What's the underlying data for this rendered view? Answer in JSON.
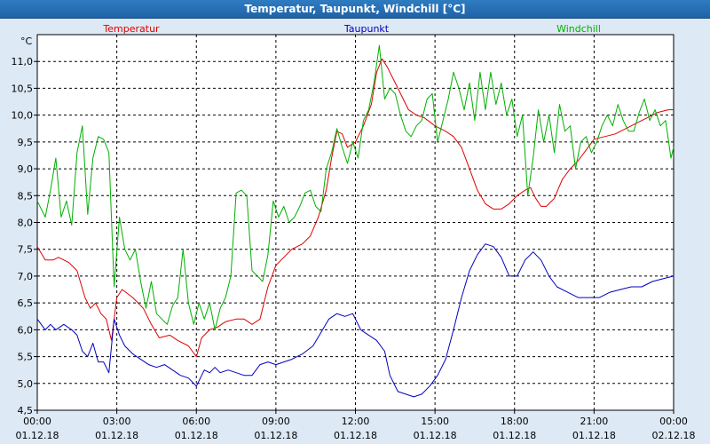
{
  "window": {
    "title": "Temperatur, Taupunkt, Windchill [°C]"
  },
  "chart_data": {
    "type": "line",
    "title": "Temperatur, Taupunkt, Windchill [°C]",
    "unit_label": "°C",
    "ylim": [
      4.5,
      11.5
    ],
    "y_ticks": [
      "4,5",
      "5,0",
      "5,5",
      "6,0",
      "6,5",
      "7,0",
      "7,5",
      "8,0",
      "8,5",
      "9,0",
      "9,5",
      "10,0",
      "10,5",
      "11,0"
    ],
    "x_ticks": [
      {
        "time": "00:00",
        "date": "01.12.18"
      },
      {
        "time": "03:00",
        "date": "01.12.18"
      },
      {
        "time": "06:00",
        "date": "01.12.18"
      },
      {
        "time": "09:00",
        "date": "01.12.18"
      },
      {
        "time": "12:00",
        "date": "01.12.18"
      },
      {
        "time": "15:00",
        "date": "01.12.18"
      },
      {
        "time": "18:00",
        "date": "01.12.18"
      },
      {
        "time": "21:00",
        "date": "01.12.18"
      },
      {
        "time": "00:00",
        "date": "02.12.18"
      }
    ],
    "x_range_hours": [
      0,
      24
    ],
    "grid": true,
    "legend_placement": "top",
    "series": [
      {
        "name": "Temperatur",
        "color": "#e00000",
        "points": [
          [
            0,
            7.55
          ],
          [
            0.3,
            7.3
          ],
          [
            0.6,
            7.3
          ],
          [
            0.8,
            7.35
          ],
          [
            1.2,
            7.25
          ],
          [
            1.5,
            7.1
          ],
          [
            1.8,
            6.6
          ],
          [
            2.0,
            6.4
          ],
          [
            2.2,
            6.5
          ],
          [
            2.4,
            6.3
          ],
          [
            2.6,
            6.2
          ],
          [
            2.8,
            5.8
          ],
          [
            3.0,
            6.6
          ],
          [
            3.2,
            6.75
          ],
          [
            3.6,
            6.6
          ],
          [
            4.0,
            6.4
          ],
          [
            4.3,
            6.1
          ],
          [
            4.6,
            5.85
          ],
          [
            5.0,
            5.9
          ],
          [
            5.3,
            5.8
          ],
          [
            5.7,
            5.7
          ],
          [
            6.0,
            5.5
          ],
          [
            6.2,
            5.85
          ],
          [
            6.5,
            6.0
          ],
          [
            6.8,
            6.05
          ],
          [
            7.1,
            6.15
          ],
          [
            7.5,
            6.2
          ],
          [
            7.8,
            6.2
          ],
          [
            8.1,
            6.1
          ],
          [
            8.4,
            6.2
          ],
          [
            8.7,
            6.8
          ],
          [
            9.0,
            7.2
          ],
          [
            9.3,
            7.35
          ],
          [
            9.6,
            7.5
          ],
          [
            10.0,
            7.6
          ],
          [
            10.3,
            7.75
          ],
          [
            10.6,
            8.1
          ],
          [
            10.9,
            8.6
          ],
          [
            11.1,
            9.2
          ],
          [
            11.3,
            9.7
          ],
          [
            11.5,
            9.65
          ],
          [
            11.7,
            9.4
          ],
          [
            12.0,
            9.5
          ],
          [
            12.3,
            9.8
          ],
          [
            12.6,
            10.2
          ],
          [
            12.8,
            10.8
          ],
          [
            13.0,
            11.05
          ],
          [
            13.2,
            10.9
          ],
          [
            13.5,
            10.6
          ],
          [
            13.8,
            10.3
          ],
          [
            14.0,
            10.1
          ],
          [
            14.3,
            10.0
          ],
          [
            14.6,
            9.95
          ],
          [
            15.0,
            9.8
          ],
          [
            15.4,
            9.7
          ],
          [
            15.7,
            9.6
          ],
          [
            16.0,
            9.4
          ],
          [
            16.3,
            9.0
          ],
          [
            16.6,
            8.6
          ],
          [
            16.9,
            8.35
          ],
          [
            17.2,
            8.25
          ],
          [
            17.5,
            8.25
          ],
          [
            17.8,
            8.35
          ],
          [
            18.1,
            8.5
          ],
          [
            18.4,
            8.6
          ],
          [
            18.6,
            8.65
          ],
          [
            18.8,
            8.45
          ],
          [
            19.0,
            8.3
          ],
          [
            19.2,
            8.3
          ],
          [
            19.5,
            8.45
          ],
          [
            19.8,
            8.8
          ],
          [
            20.1,
            9.0
          ],
          [
            20.4,
            9.15
          ],
          [
            20.7,
            9.35
          ],
          [
            21.0,
            9.55
          ],
          [
            21.4,
            9.6
          ],
          [
            21.8,
            9.65
          ],
          [
            22.2,
            9.75
          ],
          [
            22.6,
            9.85
          ],
          [
            23.0,
            9.95
          ],
          [
            23.4,
            10.05
          ],
          [
            23.8,
            10.1
          ],
          [
            24.0,
            10.1
          ]
        ]
      },
      {
        "name": "Taupunkt",
        "color": "#0000c0",
        "points": [
          [
            0,
            6.2
          ],
          [
            0.3,
            6.0
          ],
          [
            0.5,
            6.1
          ],
          [
            0.7,
            6.0
          ],
          [
            1.0,
            6.1
          ],
          [
            1.3,
            6.0
          ],
          [
            1.5,
            5.9
          ],
          [
            1.7,
            5.6
          ],
          [
            1.9,
            5.5
          ],
          [
            2.1,
            5.75
          ],
          [
            2.3,
            5.4
          ],
          [
            2.5,
            5.4
          ],
          [
            2.7,
            5.2
          ],
          [
            2.9,
            6.2
          ],
          [
            3.1,
            5.9
          ],
          [
            3.3,
            5.7
          ],
          [
            3.6,
            5.55
          ],
          [
            3.9,
            5.45
          ],
          [
            4.2,
            5.35
          ],
          [
            4.5,
            5.3
          ],
          [
            4.8,
            5.35
          ],
          [
            5.1,
            5.25
          ],
          [
            5.4,
            5.15
          ],
          [
            5.7,
            5.1
          ],
          [
            6.0,
            4.95
          ],
          [
            6.3,
            5.25
          ],
          [
            6.5,
            5.2
          ],
          [
            6.7,
            5.3
          ],
          [
            6.9,
            5.2
          ],
          [
            7.2,
            5.25
          ],
          [
            7.5,
            5.2
          ],
          [
            7.8,
            5.15
          ],
          [
            8.1,
            5.15
          ],
          [
            8.4,
            5.35
          ],
          [
            8.7,
            5.4
          ],
          [
            9.0,
            5.35
          ],
          [
            9.3,
            5.4
          ],
          [
            9.6,
            5.45
          ],
          [
            10.0,
            5.55
          ],
          [
            10.4,
            5.7
          ],
          [
            10.7,
            5.95
          ],
          [
            11.0,
            6.2
          ],
          [
            11.3,
            6.3
          ],
          [
            11.6,
            6.25
          ],
          [
            11.9,
            6.3
          ],
          [
            12.2,
            6.0
          ],
          [
            12.5,
            5.9
          ],
          [
            12.8,
            5.8
          ],
          [
            13.1,
            5.6
          ],
          [
            13.3,
            5.15
          ],
          [
            13.6,
            4.85
          ],
          [
            13.9,
            4.8
          ],
          [
            14.2,
            4.75
          ],
          [
            14.5,
            4.8
          ],
          [
            14.8,
            4.95
          ],
          [
            15.1,
            5.15
          ],
          [
            15.4,
            5.45
          ],
          [
            15.7,
            6.0
          ],
          [
            16.0,
            6.6
          ],
          [
            16.3,
            7.1
          ],
          [
            16.6,
            7.4
          ],
          [
            16.9,
            7.6
          ],
          [
            17.2,
            7.55
          ],
          [
            17.5,
            7.35
          ],
          [
            17.8,
            7.0
          ],
          [
            18.1,
            7.0
          ],
          [
            18.4,
            7.3
          ],
          [
            18.7,
            7.45
          ],
          [
            19.0,
            7.3
          ],
          [
            19.3,
            7.0
          ],
          [
            19.6,
            6.8
          ],
          [
            20.0,
            6.7
          ],
          [
            20.4,
            6.6
          ],
          [
            20.8,
            6.6
          ],
          [
            21.2,
            6.6
          ],
          [
            21.6,
            6.7
          ],
          [
            22.0,
            6.75
          ],
          [
            22.4,
            6.8
          ],
          [
            22.8,
            6.8
          ],
          [
            23.2,
            6.9
          ],
          [
            23.6,
            6.95
          ],
          [
            24.0,
            7.0
          ]
        ]
      },
      {
        "name": "Windchill",
        "color": "#00b000",
        "points": [
          [
            0,
            8.4
          ],
          [
            0.3,
            8.1
          ],
          [
            0.5,
            8.6
          ],
          [
            0.7,
            9.2
          ],
          [
            0.9,
            8.1
          ],
          [
            1.1,
            8.4
          ],
          [
            1.3,
            7.95
          ],
          [
            1.5,
            9.3
          ],
          [
            1.7,
            9.8
          ],
          [
            1.9,
            8.15
          ],
          [
            2.1,
            9.2
          ],
          [
            2.3,
            9.6
          ],
          [
            2.5,
            9.55
          ],
          [
            2.7,
            9.3
          ],
          [
            2.9,
            6.8
          ],
          [
            3.1,
            8.1
          ],
          [
            3.3,
            7.5
          ],
          [
            3.5,
            7.3
          ],
          [
            3.7,
            7.5
          ],
          [
            3.9,
            6.9
          ],
          [
            4.1,
            6.4
          ],
          [
            4.3,
            6.9
          ],
          [
            4.5,
            6.3
          ],
          [
            4.7,
            6.2
          ],
          [
            4.9,
            6.1
          ],
          [
            5.1,
            6.45
          ],
          [
            5.3,
            6.6
          ],
          [
            5.5,
            7.5
          ],
          [
            5.7,
            6.5
          ],
          [
            5.9,
            6.1
          ],
          [
            6.1,
            6.5
          ],
          [
            6.3,
            6.2
          ],
          [
            6.5,
            6.5
          ],
          [
            6.7,
            6.0
          ],
          [
            6.9,
            6.4
          ],
          [
            7.1,
            6.6
          ],
          [
            7.3,
            7.0
          ],
          [
            7.5,
            8.55
          ],
          [
            7.7,
            8.6
          ],
          [
            7.9,
            8.5
          ],
          [
            8.1,
            7.1
          ],
          [
            8.3,
            7.0
          ],
          [
            8.5,
            6.9
          ],
          [
            8.7,
            7.4
          ],
          [
            8.9,
            8.4
          ],
          [
            9.1,
            8.1
          ],
          [
            9.3,
            8.3
          ],
          [
            9.5,
            8.0
          ],
          [
            9.7,
            8.1
          ],
          [
            9.9,
            8.3
          ],
          [
            10.1,
            8.55
          ],
          [
            10.3,
            8.6
          ],
          [
            10.5,
            8.3
          ],
          [
            10.7,
            8.2
          ],
          [
            10.9,
            9.0
          ],
          [
            11.1,
            9.3
          ],
          [
            11.3,
            9.75
          ],
          [
            11.5,
            9.4
          ],
          [
            11.7,
            9.1
          ],
          [
            11.9,
            9.5
          ],
          [
            12.1,
            9.2
          ],
          [
            12.3,
            9.9
          ],
          [
            12.5,
            10.1
          ],
          [
            12.7,
            10.6
          ],
          [
            12.9,
            11.3
          ],
          [
            13.1,
            10.3
          ],
          [
            13.3,
            10.5
          ],
          [
            13.5,
            10.4
          ],
          [
            13.7,
            10.0
          ],
          [
            13.9,
            9.7
          ],
          [
            14.1,
            9.6
          ],
          [
            14.3,
            9.8
          ],
          [
            14.5,
            9.9
          ],
          [
            14.7,
            10.3
          ],
          [
            14.9,
            10.4
          ],
          [
            15.1,
            9.5
          ],
          [
            15.3,
            9.9
          ],
          [
            15.5,
            10.3
          ],
          [
            15.7,
            10.8
          ],
          [
            15.9,
            10.5
          ],
          [
            16.1,
            10.1
          ],
          [
            16.3,
            10.6
          ],
          [
            16.5,
            9.9
          ],
          [
            16.7,
            10.8
          ],
          [
            16.9,
            10.1
          ],
          [
            17.1,
            10.8
          ],
          [
            17.3,
            10.2
          ],
          [
            17.5,
            10.6
          ],
          [
            17.7,
            10.0
          ],
          [
            17.9,
            10.3
          ],
          [
            18.1,
            9.6
          ],
          [
            18.3,
            10.0
          ],
          [
            18.5,
            8.5
          ],
          [
            18.7,
            9.2
          ],
          [
            18.9,
            10.1
          ],
          [
            19.1,
            9.5
          ],
          [
            19.3,
            10.0
          ],
          [
            19.5,
            9.3
          ],
          [
            19.7,
            10.2
          ],
          [
            19.9,
            9.7
          ],
          [
            20.1,
            9.8
          ],
          [
            20.3,
            9.0
          ],
          [
            20.5,
            9.5
          ],
          [
            20.7,
            9.6
          ],
          [
            20.9,
            9.3
          ],
          [
            21.1,
            9.5
          ],
          [
            21.3,
            9.8
          ],
          [
            21.5,
            10.0
          ],
          [
            21.7,
            9.8
          ],
          [
            21.9,
            10.2
          ],
          [
            22.1,
            9.9
          ],
          [
            22.3,
            9.7
          ],
          [
            22.5,
            9.7
          ],
          [
            22.7,
            10.05
          ],
          [
            22.9,
            10.3
          ],
          [
            23.1,
            9.9
          ],
          [
            23.3,
            10.1
          ],
          [
            23.5,
            9.8
          ],
          [
            23.7,
            9.9
          ],
          [
            23.9,
            9.2
          ],
          [
            24.0,
            9.4
          ]
        ]
      }
    ]
  }
}
